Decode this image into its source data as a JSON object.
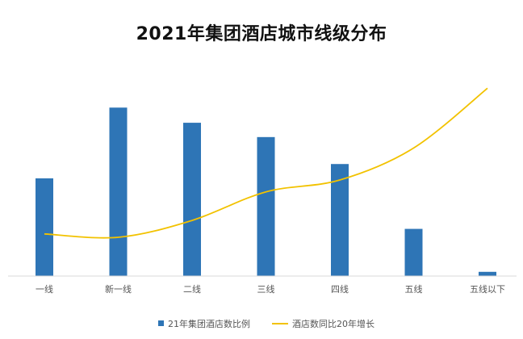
{
  "chart_data": {
    "type": "bar",
    "title": "2021年集团酒店城市线级分布",
    "categories": [
      "一线",
      "新一线",
      "二线",
      "三线",
      "四线",
      "五线",
      "五线以下"
    ],
    "series": [
      {
        "name": "21年集团酒店数比例",
        "type": "bar",
        "color": "#2E75B6",
        "values": [
          11.6,
          20.0,
          18.2,
          16.5,
          13.3,
          5.6,
          0.5
        ]
      },
      {
        "name": "酒店数同比20年增长",
        "type": "line",
        "smooth": true,
        "color": "#F2C200",
        "values": [
          5.0,
          4.6,
          6.6,
          10.0,
          11.4,
          15.2,
          22.3
        ]
      }
    ],
    "ylim": [
      0,
      23
    ],
    "grid": false,
    "legend": "bottom"
  }
}
